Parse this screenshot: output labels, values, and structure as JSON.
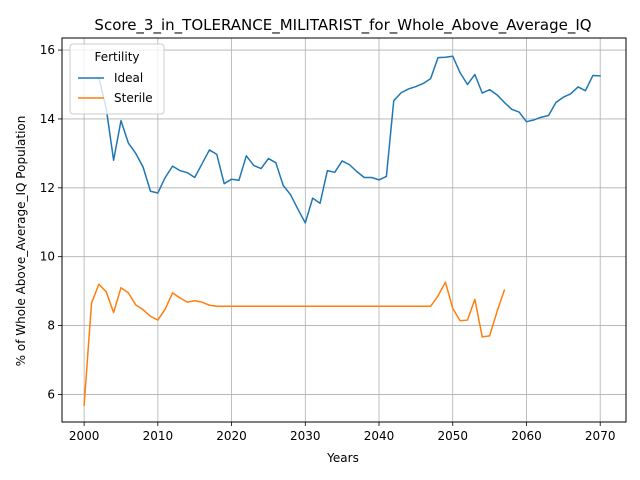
{
  "chart_data": {
    "type": "line",
    "title": "Score_3_in_TOLERANCE_MILITARIST_for_Whole_Above_Average_IQ",
    "xlabel": "Years",
    "ylabel": "% of Whole Above_Average_IQ Population",
    "xlim": [
      1997,
      2073.5
    ],
    "ylim": [
      5.2,
      16.35
    ],
    "xticks": [
      2000,
      2010,
      2020,
      2030,
      2040,
      2050,
      2060,
      2070
    ],
    "yticks": [
      6,
      8,
      10,
      12,
      14,
      16
    ],
    "grid": true,
    "legend": {
      "title": "Fertility",
      "placement": "top-left"
    },
    "series": [
      {
        "name": "Ideal",
        "color": "#1f77b4",
        "x": [
          2002,
          2003,
          2004,
          2005,
          2006,
          2007,
          2008,
          2009,
          2010,
          2011,
          2012,
          2013,
          2014,
          2015,
          2016,
          2017,
          2018,
          2019,
          2020,
          2021,
          2022,
          2023,
          2024,
          2025,
          2026,
          2027,
          2028,
          2029,
          2030,
          2031,
          2032,
          2033,
          2034,
          2035,
          2036,
          2037,
          2038,
          2039,
          2040,
          2041,
          2042,
          2043,
          2044,
          2045,
          2046,
          2047,
          2048,
          2049,
          2050,
          2051,
          2052,
          2053,
          2054,
          2055,
          2056,
          2057,
          2058,
          2059,
          2060,
          2061,
          2062,
          2063,
          2064,
          2065,
          2066,
          2067,
          2068,
          2069,
          2070
        ],
        "y": [
          15.2,
          14.3,
          12.8,
          13.95,
          13.3,
          13.0,
          12.6,
          11.9,
          11.85,
          12.3,
          12.63,
          12.5,
          12.44,
          12.3,
          12.7,
          13.1,
          12.97,
          12.12,
          12.25,
          12.22,
          12.93,
          12.65,
          12.56,
          12.85,
          12.73,
          12.07,
          11.8,
          11.38,
          10.98,
          11.7,
          11.55,
          12.5,
          12.45,
          12.78,
          12.67,
          12.47,
          12.3,
          12.3,
          12.23,
          12.33,
          14.53,
          14.76,
          14.87,
          14.94,
          15.03,
          15.17,
          15.78,
          15.79,
          15.82,
          15.34,
          15.0,
          15.29,
          14.75,
          14.85,
          14.7,
          14.48,
          14.28,
          14.2,
          13.92,
          13.97,
          14.05,
          14.1,
          14.48,
          14.63,
          14.73,
          14.93,
          14.82,
          15.26,
          15.25
        ]
      },
      {
        "name": "Sterile",
        "color": "#ff7f0e",
        "x": [
          2000,
          2001,
          2002,
          2003,
          2004,
          2005,
          2006,
          2007,
          2008,
          2009,
          2010,
          2011,
          2012,
          2013,
          2014,
          2015,
          2016,
          2017,
          2018,
          2019,
          2020,
          2021,
          2022,
          2023,
          2024,
          2025,
          2026,
          2027,
          2028,
          2029,
          2030,
          2031,
          2032,
          2033,
          2034,
          2035,
          2036,
          2037,
          2038,
          2039,
          2040,
          2041,
          2042,
          2043,
          2044,
          2045,
          2046,
          2047,
          2048,
          2049,
          2050,
          2051,
          2052,
          2053,
          2054,
          2055,
          2056,
          2057
        ],
        "y": [
          5.68,
          8.65,
          9.2,
          8.98,
          8.38,
          9.1,
          8.95,
          8.6,
          8.46,
          8.27,
          8.16,
          8.48,
          8.95,
          8.8,
          8.68,
          8.72,
          8.68,
          8.59,
          8.56,
          8.56,
          8.56,
          8.56,
          8.56,
          8.56,
          8.56,
          8.56,
          8.56,
          8.56,
          8.56,
          8.56,
          8.56,
          8.56,
          8.56,
          8.56,
          8.56,
          8.56,
          8.56,
          8.56,
          8.56,
          8.56,
          8.56,
          8.56,
          8.56,
          8.56,
          8.56,
          8.56,
          8.56,
          8.56,
          8.86,
          9.26,
          8.5,
          8.14,
          8.16,
          8.76,
          7.67,
          7.7,
          8.4,
          9.03
        ]
      }
    ]
  }
}
